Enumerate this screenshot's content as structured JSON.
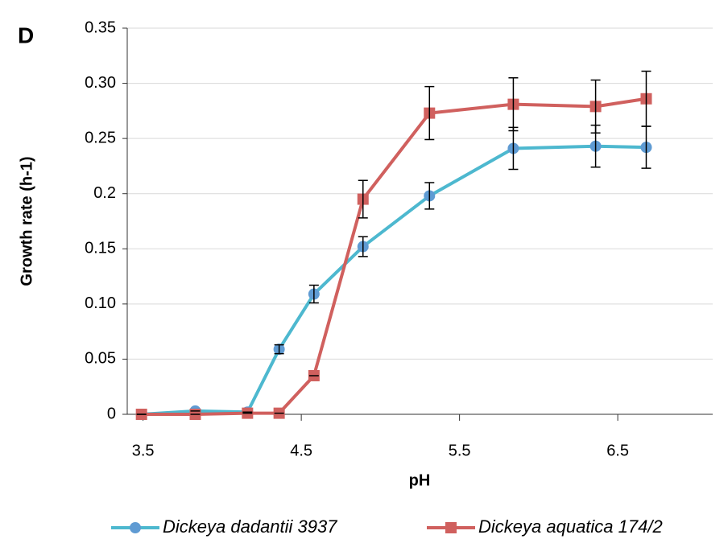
{
  "chart_data": {
    "type": "line",
    "panel_label": "D",
    "x_label": "pH",
    "y_label": "Growth rate (h-1)",
    "xlim": [
      3.4,
      7.1
    ],
    "xticks": [
      3.5,
      4.5,
      5.5,
      6.5
    ],
    "ylim": [
      0,
      0.35
    ],
    "yticks": [
      0,
      0.05,
      {
        "value": 0.1,
        "label": "0.10"
      },
      0.15,
      0.2,
      0.25,
      {
        "value": 0.3,
        "label": "0.30"
      },
      0.35
    ],
    "grid": true,
    "legend": "bottom",
    "series": [
      {
        "name": "Dickeya dadantii 3937",
        "color": "#4db8cf",
        "marker_color": "#5f9bd3",
        "marker": "circle",
        "x": [
          3.49,
          3.83,
          4.16,
          4.36,
          4.58,
          4.89,
          5.31,
          5.84,
          6.36,
          6.68
        ],
        "values": [
          0,
          0.003,
          0.002,
          0.059,
          0.109,
          0.152,
          0.198,
          0.241,
          0.243,
          0.242
        ],
        "errors": [
          0,
          0,
          0,
          0.004,
          0.008,
          0.009,
          0.012,
          0.019,
          0.019,
          0.019
        ]
      },
      {
        "name": "Dickeya aquatica 174/2",
        "color": "#d0605e",
        "marker_color": "#d0605e",
        "marker": "square",
        "x": [
          3.49,
          3.83,
          4.16,
          4.36,
          4.58,
          4.89,
          5.31,
          5.84,
          6.36,
          6.68
        ],
        "values": [
          0,
          0,
          0.001,
          0.001,
          0.035,
          0.195,
          0.273,
          0.281,
          0.279,
          0.286
        ],
        "errors": [
          0,
          0,
          0,
          0,
          0,
          0.017,
          0.024,
          0.024,
          0.024,
          0.025
        ]
      }
    ]
  }
}
